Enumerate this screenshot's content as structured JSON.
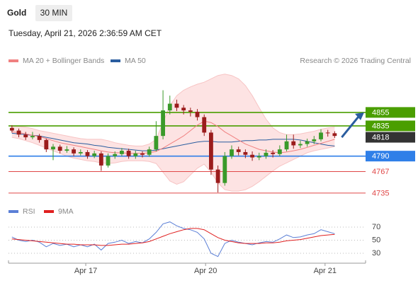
{
  "chart_data": {
    "type": "candlestick",
    "title": "Gold",
    "timeframe": "30 MIN",
    "timestamp": "Tuesday, April 21, 2026 2:36:59 AM CET",
    "credit": "Research © 2026 Trading Central",
    "legend": [
      {
        "name": "MA 20 + Bollinger Bands",
        "color": "#f08080"
      },
      {
        "name": "MA 50",
        "color": "#2a5d9f"
      }
    ],
    "xlim": [
      0,
      52
    ],
    "xticks": [
      {
        "value": 11.25,
        "label": "Apr 17"
      },
      {
        "value": 28.7,
        "label": "Apr 20"
      },
      {
        "value": 46.1,
        "label": "Apr 21"
      }
    ],
    "ylim": [
      4717,
      4917
    ],
    "up_color": "#3a9a2a",
    "down_color": "#9b1c1c",
    "candles": [
      [
        4832,
        4836,
        4825,
        4828
      ],
      [
        4828,
        4831,
        4818,
        4822
      ],
      [
        4822,
        4826,
        4814,
        4818
      ],
      [
        4818,
        4826,
        4815,
        4820
      ],
      [
        4820,
        4823,
        4810,
        4814
      ],
      [
        4814,
        4816,
        4796,
        4800
      ],
      [
        4800,
        4808,
        4784,
        4804
      ],
      [
        4804,
        4807,
        4794,
        4798
      ],
      [
        4798,
        4805,
        4795,
        4800
      ],
      [
        4800,
        4803,
        4790,
        4794
      ],
      [
        4794,
        4800,
        4791,
        4796
      ],
      [
        4796,
        4799,
        4786,
        4790
      ],
      [
        4790,
        4798,
        4787,
        4794
      ],
      [
        4794,
        4797,
        4768,
        4776
      ],
      [
        4776,
        4794,
        4773,
        4790
      ],
      [
        4790,
        4797,
        4786,
        4793
      ],
      [
        4793,
        4802,
        4790,
        4798
      ],
      [
        4798,
        4801,
        4786,
        4790
      ],
      [
        4790,
        4798,
        4786,
        4794
      ],
      [
        4794,
        4797,
        4788,
        4792
      ],
      [
        4792,
        4804,
        4789,
        4800
      ],
      [
        4800,
        4842,
        4797,
        4820
      ],
      [
        4820,
        4888,
        4815,
        4858
      ],
      [
        4858,
        4880,
        4852,
        4868
      ],
      [
        4868,
        4874,
        4857,
        4862
      ],
      [
        4862,
        4866,
        4852,
        4858
      ],
      [
        4858,
        4862,
        4849,
        4856
      ],
      [
        4856,
        4860,
        4843,
        4848
      ],
      [
        4848,
        4852,
        4820,
        4825
      ],
      [
        4825,
        4829,
        4762,
        4770
      ],
      [
        4770,
        4776,
        4736,
        4750
      ],
      [
        4750,
        4796,
        4746,
        4790
      ],
      [
        4790,
        4806,
        4786,
        4800
      ],
      [
        4800,
        4804,
        4791,
        4796
      ],
      [
        4796,
        4800,
        4787,
        4792
      ],
      [
        4792,
        4797,
        4783,
        4788
      ],
      [
        4788,
        4795,
        4784,
        4790
      ],
      [
        4790,
        4800,
        4786,
        4795
      ],
      [
        4795,
        4799,
        4788,
        4793
      ],
      [
        4793,
        4806,
        4790,
        4800
      ],
      [
        4800,
        4822,
        4797,
        4812
      ],
      [
        4812,
        4822,
        4801,
        4806
      ],
      [
        4806,
        4813,
        4802,
        4808
      ],
      [
        4808,
        4816,
        4804,
        4812
      ],
      [
        4812,
        4820,
        4808,
        4815
      ],
      [
        4815,
        4830,
        4812,
        4825
      ],
      [
        4825,
        4829,
        4819,
        4824
      ],
      [
        4824,
        4827,
        4817,
        4820
      ]
    ],
    "ma20": [
      4826,
      4825,
      4823,
      4821,
      4819,
      4816,
      4813,
      4810,
      4808,
      4806,
      4804,
      4802,
      4800,
      4798,
      4796,
      4795,
      4795,
      4794,
      4794,
      4794,
      4795,
      4797,
      4802,
      4808,
      4814,
      4820,
      4828,
      4836,
      4842,
      4840,
      4834,
      4826,
      4820,
      4814,
      4808,
      4804,
      4800,
      4798,
      4796,
      4795,
      4796,
      4798,
      4800,
      4803,
      4806,
      4809,
      4812,
      4815
    ],
    "bb_upper": [
      4834,
      4834,
      4833,
      4831,
      4828,
      4826,
      4824,
      4822,
      4820,
      4818,
      4816,
      4815,
      4815,
      4815,
      4813,
      4810,
      4808,
      4806,
      4805,
      4805,
      4808,
      4815,
      4840,
      4865,
      4880,
      4888,
      4893,
      4897,
      4900,
      4905,
      4910,
      4912,
      4910,
      4905,
      4895,
      4880,
      4862,
      4845,
      4832,
      4825,
      4822,
      4822,
      4823,
      4825,
      4827,
      4830,
      4832,
      4833
    ],
    "bb_lower": [
      4818,
      4816,
      4813,
      4810,
      4806,
      4802,
      4798,
      4794,
      4790,
      4787,
      4785,
      4783,
      4782,
      4780,
      4779,
      4780,
      4782,
      4783,
      4783,
      4783,
      4782,
      4779,
      4766,
      4753,
      4748,
      4752,
      4762,
      4772,
      4778,
      4766,
      4750,
      4740,
      4738,
      4738,
      4740,
      4745,
      4752,
      4760,
      4768,
      4775,
      4780,
      4785,
      4790,
      4795,
      4798,
      4800,
      4802,
      4804
    ],
    "ma50": [
      4824,
      4823,
      4822,
      4821,
      4820,
      4818,
      4816,
      4814,
      4812,
      4810,
      4809,
      4808,
      4806,
      4805,
      4803,
      4802,
      4801,
      4800,
      4799,
      4798,
      4798,
      4799,
      4801,
      4803,
      4805,
      4807,
      4809,
      4811,
      4812,
      4812,
      4811,
      4811,
      4811,
      4812,
      4813,
      4813,
      4814,
      4814,
      4815,
      4815,
      4815,
      4815,
      4814,
      4812,
      4810,
      4808,
      4806,
      4805
    ],
    "levels": [
      {
        "value": 4855,
        "color": "#4a9e00",
        "style": "box"
      },
      {
        "value": 4835,
        "color": "#4a9e00",
        "style": "box"
      },
      {
        "value": 4818,
        "color": "#333333",
        "style": "box"
      },
      {
        "value": 4790,
        "color": "#2f7fe8",
        "style": "box"
      },
      {
        "value": 4767,
        "color": "#e04848",
        "style": "text"
      },
      {
        "value": 4735,
        "color": "#e04848",
        "style": "text"
      }
    ],
    "rsi": {
      "legend": [
        {
          "name": "RSI",
          "color": "#5b7fd6"
        },
        {
          "name": "9MA",
          "color": "#e02020"
        }
      ],
      "ylim": [
        19.2,
        81.9
      ],
      "yticks": [
        30,
        50,
        70
      ],
      "values": [
        55,
        50,
        48,
        50,
        47,
        40,
        45,
        42,
        44,
        40,
        43,
        40,
        44,
        35,
        45,
        47,
        50,
        45,
        48,
        46,
        52,
        62,
        75,
        78,
        72,
        68,
        66,
        62,
        52,
        30,
        25,
        45,
        50,
        47,
        45,
        43,
        46,
        48,
        47,
        52,
        58,
        54,
        55,
        58,
        60,
        66,
        63,
        60
      ],
      "ma9": [
        52,
        51,
        50,
        49,
        48,
        47,
        46,
        45,
        44,
        44,
        43,
        43,
        43,
        42,
        42,
        43,
        44,
        44,
        45,
        46,
        48,
        52,
        56,
        60,
        63,
        66,
        68,
        68,
        66,
        60,
        54,
        50,
        48,
        46,
        45,
        45,
        45,
        46,
        46,
        47,
        49,
        50,
        51,
        53,
        55,
        57,
        58,
        59
      ]
    }
  }
}
